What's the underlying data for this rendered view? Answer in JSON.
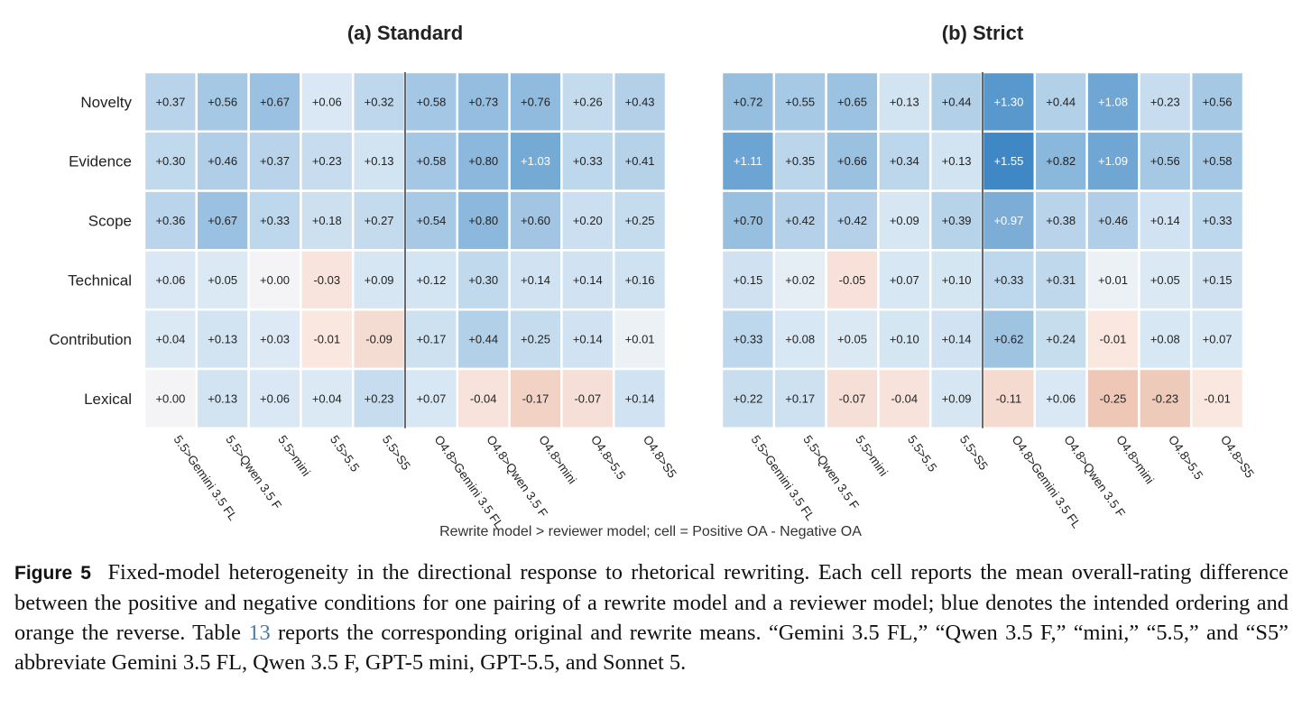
{
  "chart_data": [
    {
      "type": "heatmap",
      "title": "(a) Standard",
      "rows": [
        "Novelty",
        "Evidence",
        "Scope",
        "Technical",
        "Contribution",
        "Lexical"
      ],
      "columns": [
        "5.5>Gemini 3.5 FL",
        "5.5>Qwen 3.5 F",
        "5.5>mini",
        "5.5>5.5",
        "5.5>S5",
        "O4.8>Gemini 3.5 FL",
        "O4.8>Qwen 3.5 F",
        "O4.8>mini",
        "O4.8>5.5",
        "O4.8>S5"
      ],
      "values": [
        [
          0.37,
          0.56,
          0.67,
          0.06,
          0.32,
          0.58,
          0.73,
          0.76,
          0.26,
          0.43
        ],
        [
          0.3,
          0.46,
          0.37,
          0.23,
          0.13,
          0.58,
          0.8,
          1.03,
          0.33,
          0.41
        ],
        [
          0.36,
          0.67,
          0.33,
          0.18,
          0.27,
          0.54,
          0.8,
          0.6,
          0.2,
          0.25
        ],
        [
          0.06,
          0.05,
          0.0,
          -0.03,
          0.09,
          0.12,
          0.3,
          0.14,
          0.14,
          0.16
        ],
        [
          0.04,
          0.13,
          0.03,
          -0.01,
          -0.09,
          0.17,
          0.44,
          0.25,
          0.14,
          0.01
        ],
        [
          0.0,
          0.13,
          0.06,
          0.04,
          0.23,
          0.07,
          -0.04,
          -0.17,
          -0.07,
          0.14
        ]
      ],
      "labels": [
        [
          "+0.37",
          "+0.56",
          "+0.67",
          "+0.06",
          "+0.32",
          "+0.58",
          "+0.73",
          "+0.76",
          "+0.26",
          "+0.43"
        ],
        [
          "+0.30",
          "+0.46",
          "+0.37",
          "+0.23",
          "+0.13",
          "+0.58",
          "+0.80",
          "+1.03",
          "+0.33",
          "+0.41"
        ],
        [
          "+0.36",
          "+0.67",
          "+0.33",
          "+0.18",
          "+0.27",
          "+0.54",
          "+0.80",
          "+0.60",
          "+0.20",
          "+0.25"
        ],
        [
          "+0.06",
          "+0.05",
          "+0.00",
          "-0.03",
          "+0.09",
          "+0.12",
          "+0.30",
          "+0.14",
          "+0.14",
          "+0.16"
        ],
        [
          "+0.04",
          "+0.13",
          "+0.03",
          "-0.01",
          "-0.09",
          "+0.17",
          "+0.44",
          "+0.25",
          "+0.14",
          "+0.01"
        ],
        [
          "+0.00",
          "+0.13",
          "+0.06",
          "+0.04",
          "+0.23",
          "+0.07",
          "-0.04",
          "-0.17",
          "-0.07",
          "+0.14"
        ]
      ],
      "divider_after_column": 5,
      "colors": {
        "positive": "#3f88c5",
        "negative": "#e0a184",
        "neutral": "#f4f4f6"
      }
    },
    {
      "type": "heatmap",
      "title": "(b) Strict",
      "rows": [
        "Novelty",
        "Evidence",
        "Scope",
        "Technical",
        "Contribution",
        "Lexical"
      ],
      "columns": [
        "5.5>Gemini 3.5 FL",
        "5.5>Qwen 3.5 F",
        "5.5>mini",
        "5.5>5.5",
        "5.5>S5",
        "O4.8>Gemini 3.5 FL",
        "O4.8>Qwen 3.5 F",
        "O4.8>mini",
        "O4.8>5.5",
        "O4.8>S5"
      ],
      "values": [
        [
          0.72,
          0.55,
          0.65,
          0.13,
          0.44,
          1.3,
          0.44,
          1.08,
          0.23,
          0.56
        ],
        [
          1.11,
          0.35,
          0.66,
          0.34,
          0.13,
          1.55,
          0.82,
          1.09,
          0.56,
          0.58
        ],
        [
          0.7,
          0.42,
          0.42,
          0.09,
          0.39,
          0.97,
          0.38,
          0.46,
          0.14,
          0.33
        ],
        [
          0.15,
          0.02,
          -0.05,
          0.07,
          0.1,
          0.33,
          0.31,
          0.01,
          0.05,
          0.15
        ],
        [
          0.33,
          0.08,
          0.05,
          0.1,
          0.14,
          0.62,
          0.24,
          -0.01,
          0.08,
          0.07
        ],
        [
          0.22,
          0.17,
          -0.07,
          -0.04,
          0.09,
          -0.11,
          0.06,
          -0.25,
          -0.23,
          -0.01
        ]
      ],
      "labels": [
        [
          "+0.72",
          "+0.55",
          "+0.65",
          "+0.13",
          "+0.44",
          "+1.30",
          "+0.44",
          "+1.08",
          "+0.23",
          "+0.56"
        ],
        [
          "+1.11",
          "+0.35",
          "+0.66",
          "+0.34",
          "+0.13",
          "+1.55",
          "+0.82",
          "+1.09",
          "+0.56",
          "+0.58"
        ],
        [
          "+0.70",
          "+0.42",
          "+0.42",
          "+0.09",
          "+0.39",
          "+0.97",
          "+0.38",
          "+0.46",
          "+0.14",
          "+0.33"
        ],
        [
          "+0.15",
          "+0.02",
          "-0.05",
          "+0.07",
          "+0.10",
          "+0.33",
          "+0.31",
          "+0.01",
          "+0.05",
          "+0.15"
        ],
        [
          "+0.33",
          "+0.08",
          "+0.05",
          "+0.10",
          "+0.14",
          "+0.62",
          "+0.24",
          "-0.01",
          "+0.08",
          "+0.07"
        ],
        [
          "+0.22",
          "+0.17",
          "-0.07",
          "-0.04",
          "+0.09",
          "-0.11",
          "+0.06",
          "-0.25",
          "-0.23",
          "-0.01"
        ]
      ],
      "divider_after_column": 5,
      "colors": {
        "positive": "#3f88c5",
        "negative": "#e0a184",
        "neutral": "#f4f4f6"
      }
    }
  ],
  "xcaption": "Rewrite model > reviewer model; cell = Positive OA - Negative OA",
  "caption": {
    "label": "Figure 5",
    "text_before": "Fixed-model heterogeneity in the directional response to rhetorical rewriting. Each cell reports the mean overall-rating difference between the positive and negative conditions for one pairing of a rewrite model and a reviewer model; blue denotes the intended ordering and orange the reverse. Table",
    "table_ref": "13",
    "text_after": "reports the corresponding original and rewrite means. “Gemini 3.5 FL,” “Qwen 3.5 F,” “mini,” “5.5,” and “S5” abbreviate Gemini 3.5 FL, Qwen 3.5 F, GPT-5 mini, GPT-5.5, and Sonnet 5."
  }
}
